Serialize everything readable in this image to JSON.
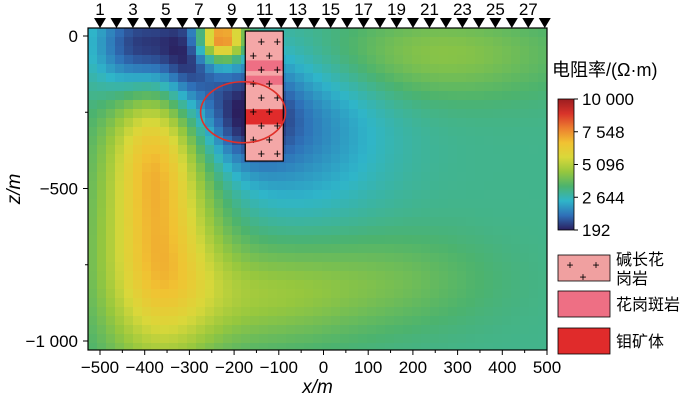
{
  "chart_data": {
    "type": "heatmap",
    "title": "",
    "xlabel": "x/m",
    "ylabel": "z/m",
    "xlim": [
      -500,
      500
    ],
    "ylim": [
      -1050,
      20
    ],
    "x_ticks": [
      -500,
      -400,
      -300,
      -200,
      -100,
      0,
      100,
      200,
      300,
      400,
      500
    ],
    "x_tick_labels": [
      "−500",
      "−400",
      "−300",
      "−200",
      "−100",
      "0",
      "100",
      "200",
      "300",
      "400",
      "500"
    ],
    "y_ticks": [
      0,
      -500,
      -1000
    ],
    "y_tick_labels": [
      "0",
      "−500",
      "−1 000"
    ],
    "stations": {
      "labels": [
        "1",
        "3",
        "5",
        "7",
        "9",
        "11",
        "13",
        "15",
        "17",
        "19",
        "21",
        "23",
        "25",
        "27"
      ],
      "count": 28,
      "x_start": -500,
      "x_end": 495
    },
    "colorbar": {
      "title": "电阻率/(Ω·m)",
      "min": 192,
      "max": 10000,
      "ticks": [
        10000,
        7548,
        5096,
        2644,
        192
      ],
      "tick_labels": [
        "10 000",
        "7 548",
        "5 096",
        "2 644",
        "192"
      ],
      "colors": [
        "#2b1f5e",
        "#2f70b8",
        "#2fb5c9",
        "#4cb36e",
        "#96c73e",
        "#d9d83a",
        "#f1c232",
        "#ec7e2f",
        "#d8332a",
        "#9b1d20"
      ]
    },
    "background_value": 3100,
    "features": [
      {
        "name": "shallow low-resistivity zone",
        "x": -410,
        "z": -40,
        "sx": 70,
        "sz": 110,
        "value": 300
      },
      {
        "name": "shallow low-resistivity zone",
        "x": -300,
        "z": -60,
        "sx": 45,
        "sz": 120,
        "value": 900
      },
      {
        "name": "low-resistivity zone",
        "x": -180,
        "z": -250,
        "sx": 75,
        "sz": 120,
        "value": 900
      },
      {
        "name": "low-resistivity zone",
        "x": -60,
        "z": -300,
        "sx": 140,
        "sz": 200,
        "value": 1600
      },
      {
        "name": "high-resistivity body",
        "x": -370,
        "z": -700,
        "sx": 90,
        "sz": 260,
        "value": 6600
      },
      {
        "name": "high-resistivity body",
        "x": -380,
        "z": -350,
        "sx": 70,
        "sz": 160,
        "value": 5300
      },
      {
        "name": "moderate zone",
        "x": -150,
        "z": -850,
        "sx": 160,
        "sz": 120,
        "value": 4500
      },
      {
        "name": "moderate zone",
        "x": 150,
        "z": -800,
        "sx": 160,
        "sz": 110,
        "value": 3900
      },
      {
        "name": "surface high",
        "x": -230,
        "z": -10,
        "sx": 35,
        "sz": 50,
        "value": 8800
      },
      {
        "name": "surface high",
        "x": 250,
        "z": -60,
        "sx": 200,
        "sz": 100,
        "value": 4400
      }
    ],
    "granite_body": {
      "x_range": [
        -175,
        -90
      ],
      "z_range": [
        -10,
        -410
      ],
      "bands_z": [
        [
          -80,
          -115
        ],
        [
          -130,
          -160
        ],
        [
          -240,
          -290
        ]
      ],
      "ore_band_z": [
        -240,
        -290
      ]
    },
    "target_ellipse": {
      "cx": -180,
      "cz": -250,
      "rx": 95,
      "rz": 100
    },
    "legend": [
      {
        "label": "碱长花岗岩",
        "color": "#f0a0a0",
        "pattern": "plus"
      },
      {
        "label": "花岗斑岩",
        "color": "#ee6f84",
        "pattern": ""
      },
      {
        "label": "钼矿体",
        "color": "#e02b2b",
        "pattern": ""
      }
    ]
  }
}
